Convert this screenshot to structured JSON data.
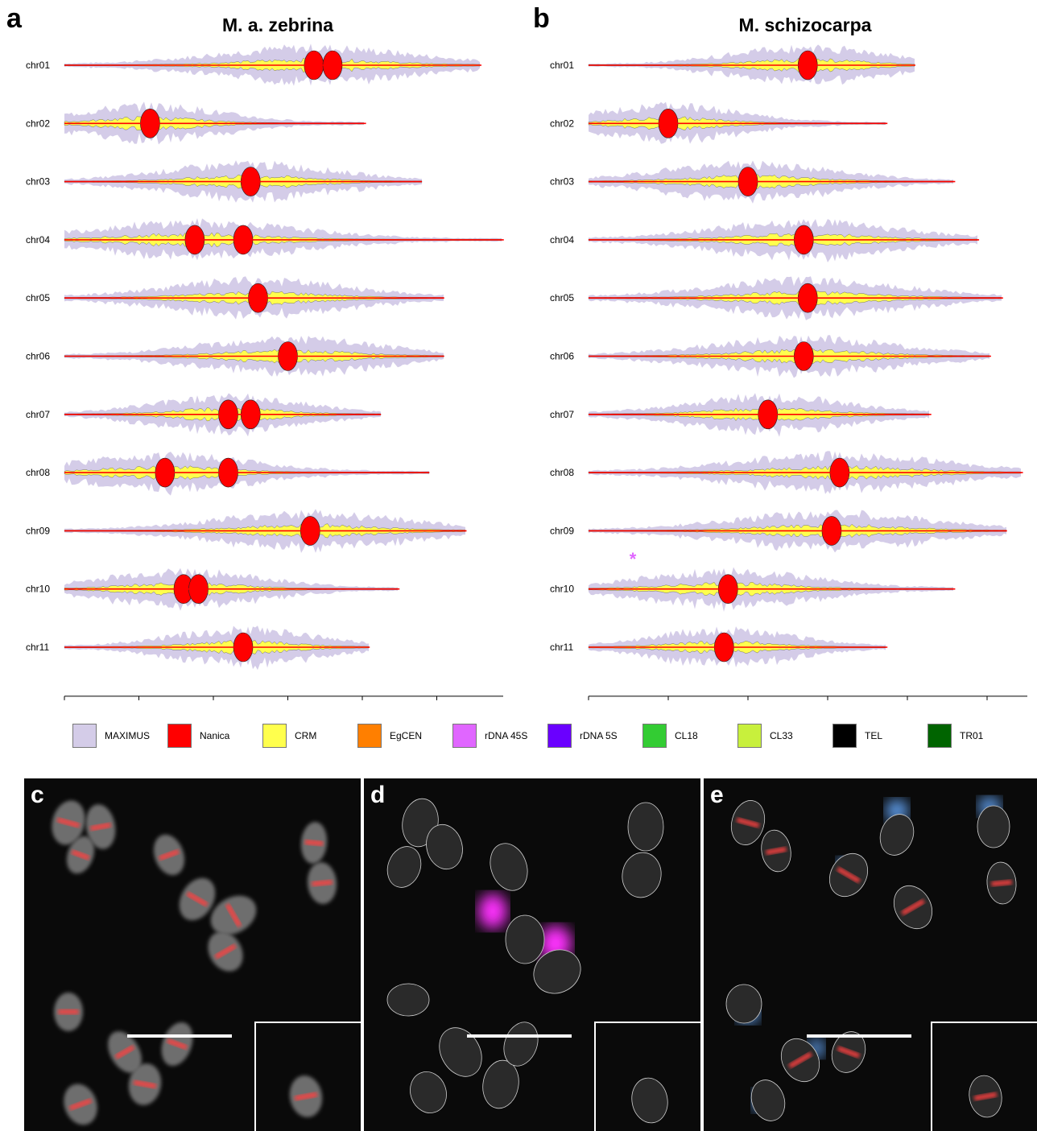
{
  "panels": {
    "a": {
      "letter": "a",
      "title": "M. a. zebrina"
    },
    "b": {
      "letter": "b",
      "title": "M. schizocarpa"
    },
    "c": {
      "letter": "c"
    },
    "d": {
      "letter": "d"
    },
    "e": {
      "letter": "e"
    }
  },
  "chromosomes": [
    "chr01",
    "chr02",
    "chr03",
    "chr04",
    "chr05",
    "chr06",
    "chr07",
    "chr08",
    "chr09",
    "chr10",
    "chr11"
  ],
  "axis_ticks": [
    "0Mb",
    "10Mb",
    "20Mb",
    "30Mb",
    "40Mb",
    "50Mb"
  ],
  "annotation_star": "*",
  "legend": [
    {
      "label": "MAXIMUS",
      "color": "#d4cce8"
    },
    {
      "label": "Nanica",
      "color": "#ff0000"
    },
    {
      "label": "CRM",
      "color": "#ffff4d"
    },
    {
      "label": "EgCEN",
      "color": "#ff7f00"
    },
    {
      "label": "rDNA 45S",
      "color": "#e066ff"
    },
    {
      "label": "rDNA 5S",
      "color": "#6a00ff"
    },
    {
      "label": "CL18",
      "color": "#33cc33"
    },
    {
      "label": "CL33",
      "color": "#c8f03c"
    },
    {
      "label": "TEL",
      "color": "#000000"
    },
    {
      "label": "TR01",
      "color": "#006400"
    }
  ],
  "chart_data": [
    {
      "type": "area",
      "title": "M. a. zebrina",
      "x_unit": "Mb",
      "xlim": [
        0,
        59
      ],
      "chromosome_length_mb": {
        "chr01": 56,
        "chr02": 40.5,
        "chr03": 48,
        "chr04": 59,
        "chr05": 51,
        "chr06": 51,
        "chr07": 42.5,
        "chr08": 49,
        "chr09": 54,
        "chr10": 45,
        "chr11": 41
      },
      "nanica_peaks_mb": {
        "chr01": [
          33.5,
          36
        ],
        "chr02": [
          11.5
        ],
        "chr03": [
          25
        ],
        "chr04": [
          17.5,
          24
        ],
        "chr05": [
          26
        ],
        "chr06": [
          30
        ],
        "chr07": [
          22,
          25
        ],
        "chr08": [
          13.5,
          22
        ],
        "chr09": [
          33
        ],
        "chr10": [
          16,
          18
        ],
        "chr11": [
          24
        ]
      }
    },
    {
      "type": "area",
      "title": "M. schizocarpa",
      "x_unit": "Mb",
      "xlim": [
        0,
        55
      ],
      "chromosome_length_mb": {
        "chr01": 41,
        "chr02": 37.5,
        "chr03": 46,
        "chr04": 49,
        "chr05": 52,
        "chr06": 50.5,
        "chr07": 43,
        "chr08": 54.5,
        "chr09": 52.5,
        "chr10": 46,
        "chr11": 37.5
      },
      "nanica_peaks_mb": {
        "chr01": [
          27.5
        ],
        "chr02": [
          10
        ],
        "chr03": [
          20
        ],
        "chr04": [
          27
        ],
        "chr05": [
          27.5
        ],
        "chr06": [
          27
        ],
        "chr07": [
          22.5
        ],
        "chr08": [
          31.5
        ],
        "chr09": [
          30.5
        ],
        "chr10": [
          17.5
        ],
        "chr11": [
          17
        ]
      }
    }
  ]
}
